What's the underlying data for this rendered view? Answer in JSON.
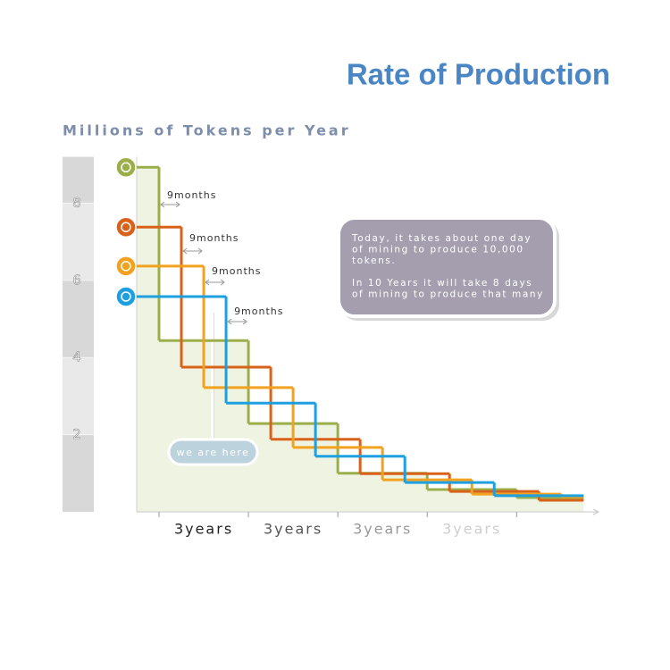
{
  "chart_data": {
    "type": "step",
    "title": "Rate of Production",
    "y_axis_title": "Millions of Tokens per Year",
    "xlim": [
      0,
      15.5
    ],
    "ylim": [
      0,
      9.2
    ],
    "xticks": [
      0.75,
      3.75,
      6.75,
      9.75,
      12.75
    ],
    "yticks": [
      2,
      4,
      6,
      8
    ],
    "period_labels": [
      "3years",
      "3years",
      "3years",
      "3years"
    ],
    "period_label_colors": [
      "#222222",
      "#555555",
      "#9a9a9a",
      "#cfcfcf"
    ],
    "series": [
      {
        "color": "#9aaf4a",
        "x": [
          0,
          0.75,
          3.75,
          6.75,
          9.75,
          12.75
        ],
        "values": [
          8.93,
          4.44,
          2.29,
          1.0,
          0.58,
          0.37
        ]
      },
      {
        "color": "#d9621a",
        "x": [
          0,
          1.5,
          4.5,
          7.5,
          10.5,
          13.5
        ],
        "values": [
          7.38,
          3.75,
          1.88,
          0.99,
          0.53,
          0.3
        ]
      },
      {
        "color": "#f2a21e",
        "x": [
          0,
          2.25,
          5.25,
          8.25,
          11.25,
          14.25
        ],
        "values": [
          6.37,
          3.22,
          1.67,
          0.83,
          0.46,
          0.39
        ]
      },
      {
        "color": "#1ea0e0",
        "x": [
          0,
          3,
          6,
          9,
          12
        ],
        "values": [
          5.58,
          2.82,
          1.44,
          0.76,
          0.42
        ]
      }
    ],
    "annotations": [
      "9months",
      "9months",
      "9months",
      "9months"
    ],
    "marker_label": "we are here",
    "note": [
      [
        "Today, it takes about one day",
        "of mining to produce 10,000",
        "tokens."
      ],
      [
        "In 10 Years it will take 8 days",
        "of mining to produce that many"
      ]
    ]
  }
}
